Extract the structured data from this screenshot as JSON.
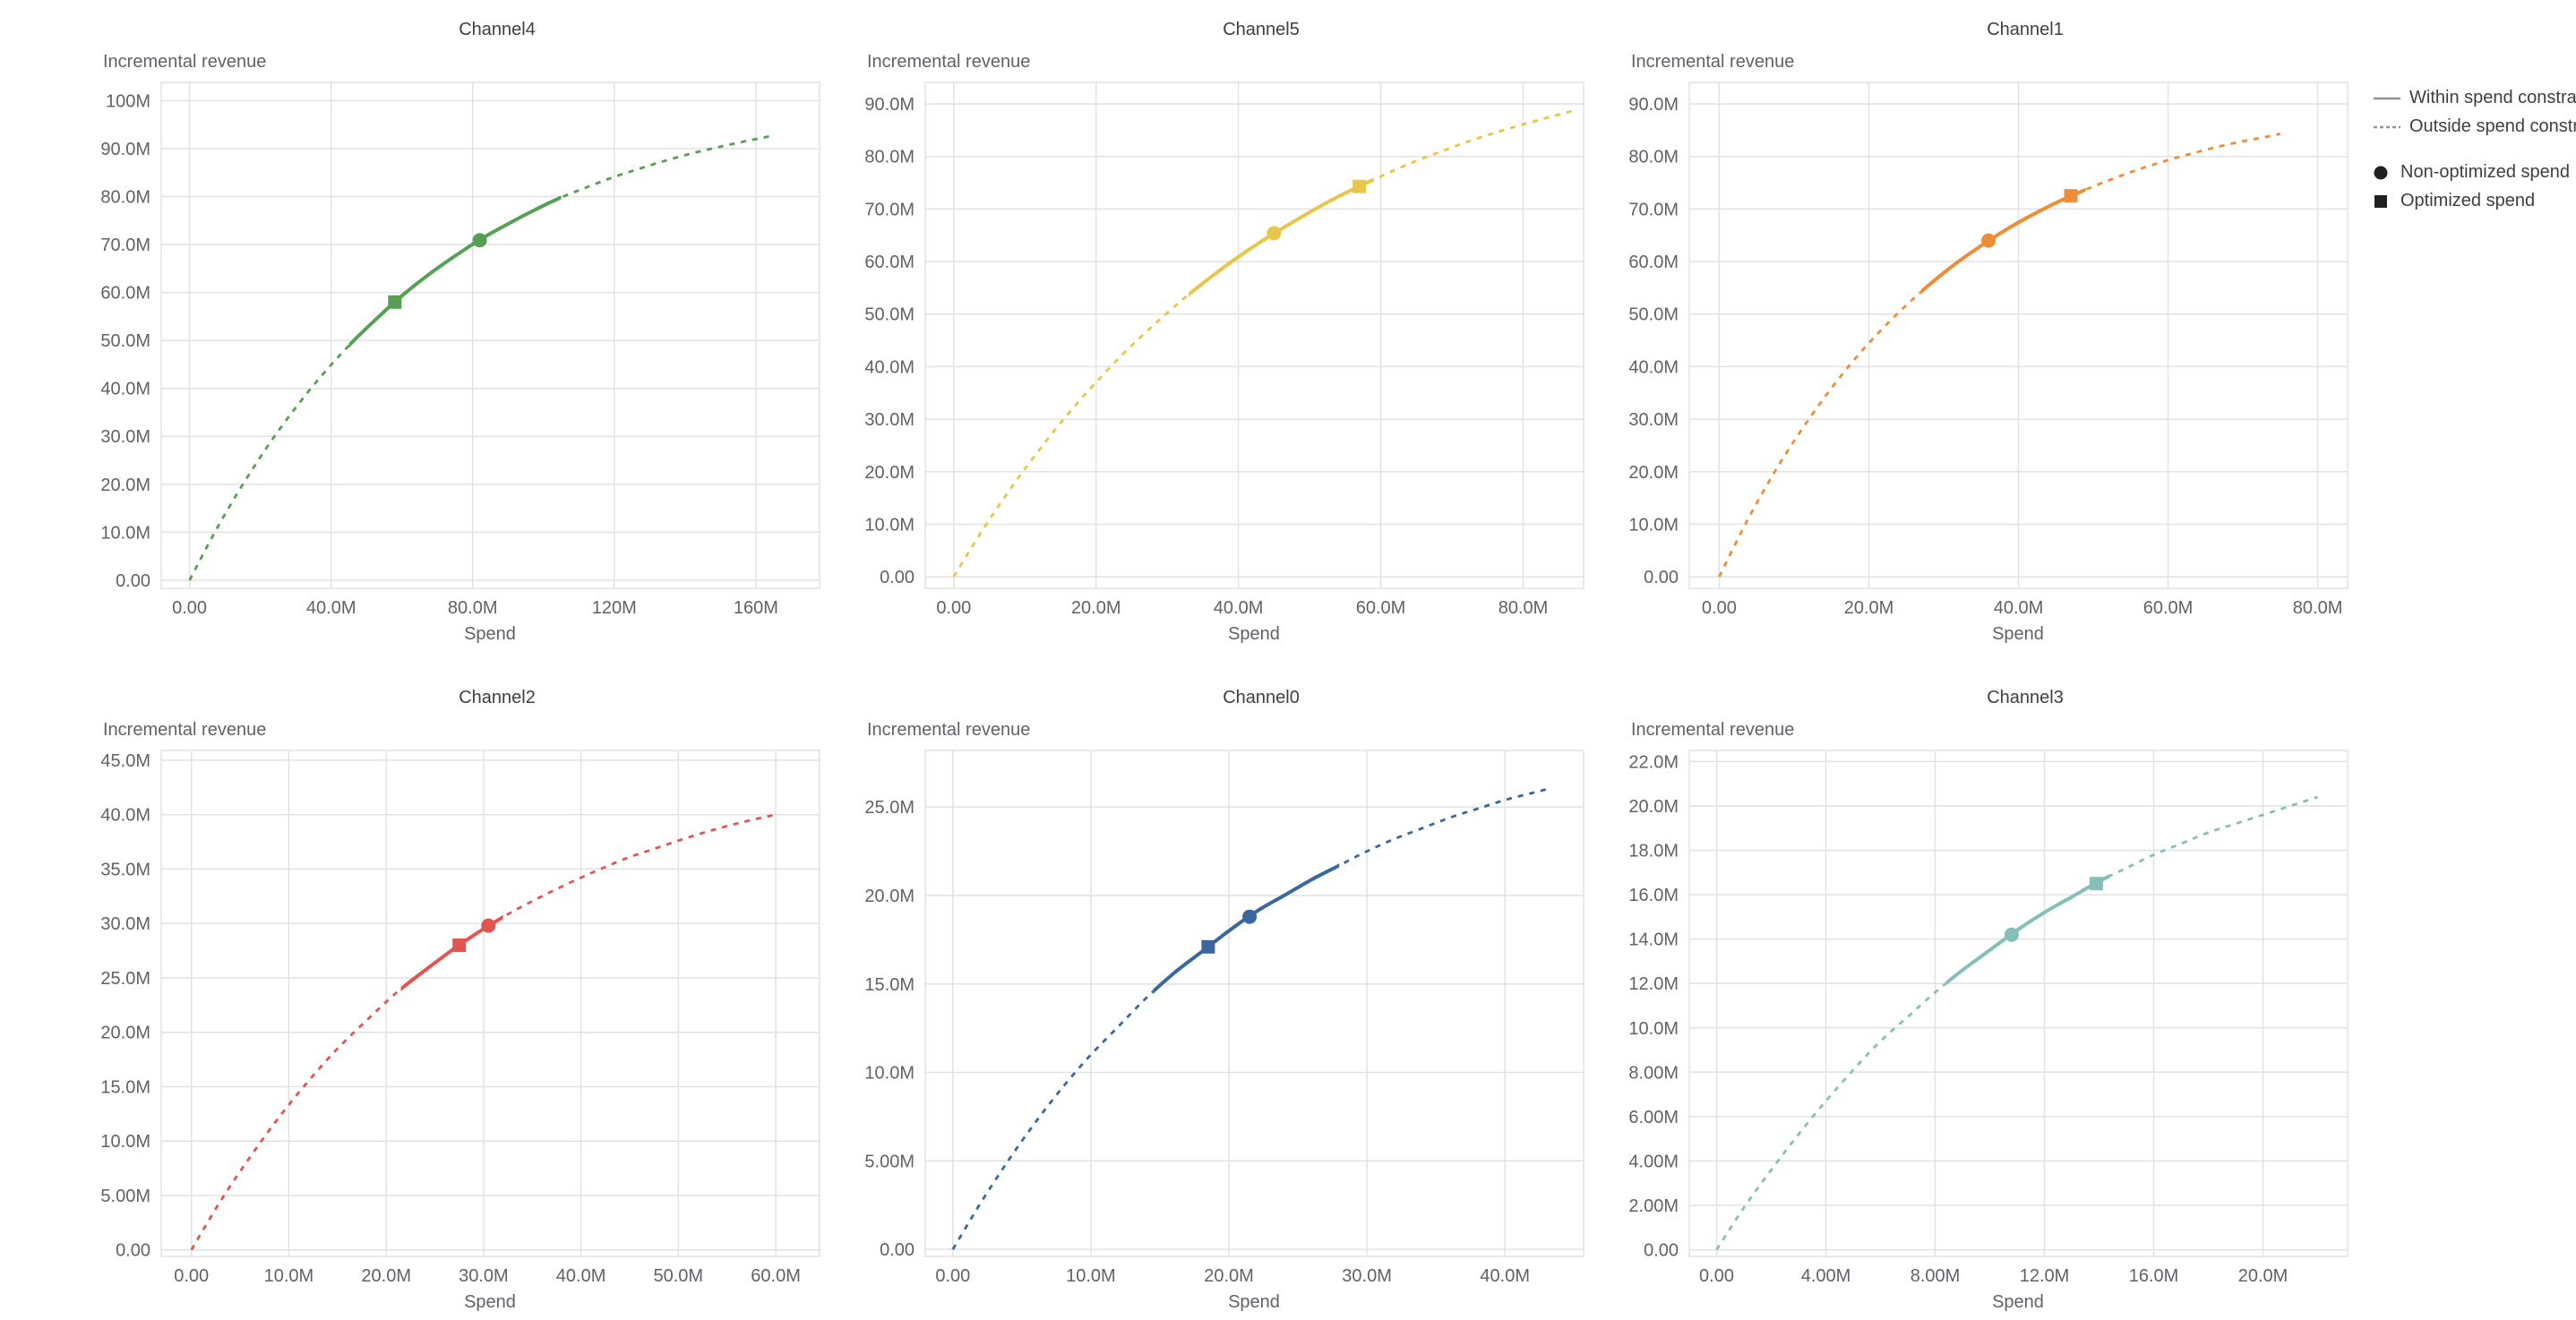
{
  "page": {
    "background": "#ffffff"
  },
  "legend": {
    "line_color": "#8f9399",
    "marker_color": "#202124",
    "items": [
      {
        "label": "Within spend constraint",
        "swatch": "solid-line"
      },
      {
        "label": "Outside spend constraint",
        "swatch": "dashed-line"
      },
      {
        "label": "Non-optimized spend",
        "swatch": "circle"
      },
      {
        "label": "Optimized spend",
        "swatch": "square"
      }
    ]
  },
  "chart_data": [
    {
      "type": "line",
      "title": "Channel4",
      "x_axis_title": "Spend",
      "y_axis_title": "Incremental revenue",
      "color": "#55a054",
      "units": "M",
      "x_domain": [
        -8,
        178
      ],
      "y_domain": [
        -1.7,
        103.8
      ],
      "x_ticks": [
        {
          "v": 0,
          "label": "0.00"
        },
        {
          "v": 40,
          "label": "40.0M"
        },
        {
          "v": 80,
          "label": "80.0M"
        },
        {
          "v": 120,
          "label": "120M"
        },
        {
          "v": 160,
          "label": "160M"
        }
      ],
      "y_ticks": [
        {
          "v": 0,
          "label": "0.00"
        },
        {
          "v": 10,
          "label": "10.0M"
        },
        {
          "v": 20,
          "label": "20.0M"
        },
        {
          "v": 30,
          "label": "30.0M"
        },
        {
          "v": 40,
          "label": "40.0M"
        },
        {
          "v": 50,
          "label": "50.0M"
        },
        {
          "v": 60,
          "label": "60.0M"
        },
        {
          "v": 70,
          "label": "70.0M"
        },
        {
          "v": 80,
          "label": "80.0M"
        },
        {
          "v": 90,
          "label": "90.0M"
        },
        {
          "v": 100,
          "label": "100M"
        }
      ],
      "curve": [
        [
          0,
          0
        ],
        [
          7.5,
          10.5
        ],
        [
          15,
          19.9
        ],
        [
          22.5,
          28.4
        ],
        [
          30,
          36.0
        ],
        [
          37.5,
          42.8
        ],
        [
          45,
          48.9
        ],
        [
          52.5,
          54.3
        ],
        [
          60,
          59.3
        ],
        [
          67.5,
          63.7
        ],
        [
          75,
          67.6
        ],
        [
          82.5,
          71.2
        ],
        [
          90,
          74.3
        ],
        [
          97.5,
          77.2
        ],
        [
          105,
          79.8
        ],
        [
          112.5,
          82.0
        ],
        [
          120,
          84.1
        ],
        [
          127.5,
          85.9
        ],
        [
          135,
          87.6
        ],
        [
          142.5,
          89.1
        ],
        [
          150,
          90.4
        ],
        [
          157.5,
          91.6
        ],
        [
          165,
          92.7
        ]
      ],
      "solid_range": [
        45,
        105
      ],
      "markers": {
        "non_optimized": [
          82,
          70.9
        ],
        "optimized": [
          58,
          58.0
        ]
      }
    },
    {
      "type": "line",
      "title": "Channel5",
      "x_axis_title": "Spend",
      "y_axis_title": "Incremental revenue",
      "color": "#e8c64a",
      "units": "M",
      "x_domain": [
        -4,
        88.5
      ],
      "y_domain": [
        -2.2,
        94.1
      ],
      "x_ticks": [
        {
          "v": 0,
          "label": "0.00"
        },
        {
          "v": 20,
          "label": "20.0M"
        },
        {
          "v": 40,
          "label": "40.0M"
        },
        {
          "v": 60,
          "label": "60.0M"
        },
        {
          "v": 80,
          "label": "80.0M"
        }
      ],
      "y_ticks": [
        {
          "v": 0,
          "label": "0.00"
        },
        {
          "v": 10,
          "label": "10.0M"
        },
        {
          "v": 20,
          "label": "20.0M"
        },
        {
          "v": 30,
          "label": "30.0M"
        },
        {
          "v": 40,
          "label": "40.0M"
        },
        {
          "v": 50,
          "label": "50.0M"
        },
        {
          "v": 60,
          "label": "60.0M"
        },
        {
          "v": 70,
          "label": "70.0M"
        },
        {
          "v": 80,
          "label": "80.0M"
        },
        {
          "v": 90,
          "label": "90.0M"
        }
      ],
      "curve": [
        [
          0,
          0
        ],
        [
          4,
          8.8
        ],
        [
          8,
          16.8
        ],
        [
          12,
          24.1
        ],
        [
          16,
          30.9
        ],
        [
          20,
          37.0
        ],
        [
          24,
          42.7
        ],
        [
          28,
          47.8
        ],
        [
          32,
          52.6
        ],
        [
          36,
          56.9
        ],
        [
          40,
          60.9
        ],
        [
          44,
          64.5
        ],
        [
          48,
          67.8
        ],
        [
          52,
          70.9
        ],
        [
          56,
          73.7
        ],
        [
          60,
          76.2
        ],
        [
          64,
          78.6
        ],
        [
          68,
          80.7
        ],
        [
          72,
          82.7
        ],
        [
          76,
          84.5
        ],
        [
          80,
          86.1
        ],
        [
          84,
          87.6
        ],
        [
          87,
          88.7
        ]
      ],
      "solid_range": [
        33,
        59
      ],
      "markers": {
        "non_optimized": [
          45,
          65.4
        ],
        "optimized": [
          57,
          74.3
        ]
      }
    },
    {
      "type": "line",
      "title": "Channel1",
      "x_axis_title": "Spend",
      "y_axis_title": "Incremental revenue",
      "color": "#ee8d36",
      "units": "M",
      "x_domain": [
        -4,
        84
      ],
      "y_domain": [
        -2.2,
        94.1
      ],
      "x_ticks": [
        {
          "v": 0,
          "label": "0.00"
        },
        {
          "v": 20,
          "label": "20.0M"
        },
        {
          "v": 40,
          "label": "40.0M"
        },
        {
          "v": 60,
          "label": "60.0M"
        },
        {
          "v": 80,
          "label": "80.0M"
        }
      ],
      "y_ticks": [
        {
          "v": 0,
          "label": "0.00"
        },
        {
          "v": 10,
          "label": "10.0M"
        },
        {
          "v": 20,
          "label": "20.0M"
        },
        {
          "v": 30,
          "label": "30.0M"
        },
        {
          "v": 40,
          "label": "40.0M"
        },
        {
          "v": 50,
          "label": "50.0M"
        },
        {
          "v": 60,
          "label": "60.0M"
        },
        {
          "v": 70,
          "label": "70.0M"
        },
        {
          "v": 80,
          "label": "80.0M"
        },
        {
          "v": 90,
          "label": "90.0M"
        }
      ],
      "curve": [
        [
          0,
          0
        ],
        [
          3.5,
          10.0
        ],
        [
          7,
          19.0
        ],
        [
          10.5,
          26.9
        ],
        [
          14,
          34.0
        ],
        [
          17.5,
          40.4
        ],
        [
          21,
          46.0
        ],
        [
          24.5,
          51.0
        ],
        [
          28,
          55.5
        ],
        [
          31.5,
          59.5
        ],
        [
          35,
          63.0
        ],
        [
          38.5,
          66.2
        ],
        [
          42,
          69.0
        ],
        [
          45.5,
          71.5
        ],
        [
          49,
          73.7
        ],
        [
          52.5,
          75.7
        ],
        [
          56,
          77.5
        ],
        [
          59.5,
          79.1
        ],
        [
          63,
          80.5
        ],
        [
          66.5,
          81.8
        ],
        [
          70,
          82.9
        ],
        [
          73,
          83.7
        ],
        [
          75,
          84.3
        ]
      ],
      "solid_range": [
        27,
        49
      ],
      "markers": {
        "non_optimized": [
          36,
          64.0
        ],
        "optimized": [
          47,
          72.5
        ]
      }
    },
    {
      "type": "line",
      "title": "Channel2",
      "x_axis_title": "Spend",
      "y_axis_title": "Incremental revenue",
      "color": "#e0554f",
      "units": "M",
      "x_domain": [
        -3.1,
        64.5
      ],
      "y_domain": [
        -0.6,
        45.9
      ],
      "x_ticks": [
        {
          "v": 0,
          "label": "0.00"
        },
        {
          "v": 10,
          "label": "10.0M"
        },
        {
          "v": 20,
          "label": "20.0M"
        },
        {
          "v": 30,
          "label": "30.0M"
        },
        {
          "v": 40,
          "label": "40.0M"
        },
        {
          "v": 50,
          "label": "50.0M"
        },
        {
          "v": 60,
          "label": "60.0M"
        }
      ],
      "y_ticks": [
        {
          "v": 0,
          "label": "0.00"
        },
        {
          "v": 5,
          "label": "5.00M"
        },
        {
          "v": 10,
          "label": "10.0M"
        },
        {
          "v": 15,
          "label": "15.0M"
        },
        {
          "v": 20,
          "label": "20.0M"
        },
        {
          "v": 25,
          "label": "25.0M"
        },
        {
          "v": 30,
          "label": "30.0M"
        },
        {
          "v": 35,
          "label": "35.0M"
        },
        {
          "v": 40,
          "label": "40.0M"
        },
        {
          "v": 45,
          "label": "45.0M"
        }
      ],
      "curve": [
        [
          0,
          0
        ],
        [
          3,
          4.5
        ],
        [
          6,
          8.5
        ],
        [
          9,
          12.2
        ],
        [
          12,
          15.5
        ],
        [
          15,
          18.5
        ],
        [
          18,
          21.1
        ],
        [
          21,
          23.6
        ],
        [
          24,
          25.7
        ],
        [
          27,
          27.7
        ],
        [
          30,
          29.5
        ],
        [
          33,
          31.1
        ],
        [
          36,
          32.5
        ],
        [
          39,
          33.8
        ],
        [
          42,
          35.0
        ],
        [
          45,
          36.1
        ],
        [
          48,
          37.0
        ],
        [
          51,
          37.9
        ],
        [
          54,
          38.7
        ],
        [
          57,
          39.4
        ],
        [
          60,
          40.0
        ]
      ],
      "solid_range": [
        21.5,
        32
      ],
      "markers": {
        "non_optimized": [
          30.5,
          29.8
        ],
        "optimized": [
          27.5,
          28.0
        ]
      }
    },
    {
      "type": "line",
      "title": "Channel0",
      "x_axis_title": "Spend",
      "y_axis_title": "Incremental revenue",
      "color": "#3a689e",
      "units": "M",
      "x_domain": [
        -2,
        45.7
      ],
      "y_domain": [
        -0.4,
        28.2
      ],
      "x_ticks": [
        {
          "v": 0,
          "label": "0.00"
        },
        {
          "v": 10,
          "label": "10.0M"
        },
        {
          "v": 20,
          "label": "20.0M"
        },
        {
          "v": 30,
          "label": "30.0M"
        },
        {
          "v": 40,
          "label": "40.0M"
        }
      ],
      "y_ticks": [
        {
          "v": 0,
          "label": "0.00"
        },
        {
          "v": 5,
          "label": "5.00M"
        },
        {
          "v": 10,
          "label": "10.0M"
        },
        {
          "v": 15,
          "label": "15.0M"
        },
        {
          "v": 20,
          "label": "20.0M"
        },
        {
          "v": 25,
          "label": "25.0M"
        }
      ],
      "curve": [
        [
          0,
          0
        ],
        [
          2,
          2.6
        ],
        [
          4,
          5.0
        ],
        [
          6,
          7.2
        ],
        [
          8,
          9.2
        ],
        [
          10,
          11.0
        ],
        [
          12,
          12.6
        ],
        [
          14,
          14.2
        ],
        [
          16,
          15.6
        ],
        [
          18,
          16.8
        ],
        [
          20,
          18.0
        ],
        [
          22,
          19.1
        ],
        [
          24,
          20.0
        ],
        [
          26,
          20.9
        ],
        [
          28,
          21.7
        ],
        [
          30,
          22.5
        ],
        [
          32,
          23.2
        ],
        [
          34,
          23.8
        ],
        [
          36,
          24.4
        ],
        [
          38,
          24.9
        ],
        [
          40,
          25.4
        ],
        [
          42,
          25.8
        ],
        [
          43,
          26.0
        ]
      ],
      "solid_range": [
        14.5,
        28
      ],
      "markers": {
        "non_optimized": [
          21.5,
          18.8
        ],
        "optimized": [
          18.5,
          17.1
        ]
      }
    },
    {
      "type": "line",
      "title": "Channel3",
      "x_axis_title": "Spend",
      "y_axis_title": "Incremental revenue",
      "color": "#84c0b9",
      "units": "M",
      "x_domain": [
        -1,
        23.1
      ],
      "y_domain": [
        -0.3,
        22.5
      ],
      "x_ticks": [
        {
          "v": 0,
          "label": "0.00"
        },
        {
          "v": 4,
          "label": "4.00M"
        },
        {
          "v": 8,
          "label": "8.00M"
        },
        {
          "v": 12,
          "label": "12.0M"
        },
        {
          "v": 16,
          "label": "16.0M"
        },
        {
          "v": 20,
          "label": "20.0M"
        }
      ],
      "y_ticks": [
        {
          "v": 0,
          "label": "0.00"
        },
        {
          "v": 2,
          "label": "2.00M"
        },
        {
          "v": 4,
          "label": "4.00M"
        },
        {
          "v": 6,
          "label": "6.00M"
        },
        {
          "v": 8,
          "label": "8.00M"
        },
        {
          "v": 10,
          "label": "10.0M"
        },
        {
          "v": 12,
          "label": "12.0M"
        },
        {
          "v": 14,
          "label": "14.0M"
        },
        {
          "v": 16,
          "label": "16.0M"
        },
        {
          "v": 18,
          "label": "18.0M"
        },
        {
          "v": 20,
          "label": "20.0M"
        },
        {
          "v": 22,
          "label": "22.0M"
        }
      ],
      "curve": [
        [
          0,
          0
        ],
        [
          1,
          1.9
        ],
        [
          2,
          3.6
        ],
        [
          3,
          5.2
        ],
        [
          4,
          6.7
        ],
        [
          5,
          8.1
        ],
        [
          6,
          9.4
        ],
        [
          7,
          10.5
        ],
        [
          8,
          11.6
        ],
        [
          9,
          12.6
        ],
        [
          10,
          13.5
        ],
        [
          11,
          14.4
        ],
        [
          12,
          15.2
        ],
        [
          13,
          15.9
        ],
        [
          14,
          16.6
        ],
        [
          15,
          17.2
        ],
        [
          16,
          17.8
        ],
        [
          17,
          18.3
        ],
        [
          18,
          18.8
        ],
        [
          19,
          19.2
        ],
        [
          20,
          19.6
        ],
        [
          21,
          20.0
        ],
        [
          22,
          20.4
        ]
      ],
      "solid_range": [
        8.4,
        14.4
      ],
      "markers": {
        "non_optimized": [
          10.8,
          14.2
        ],
        "optimized": [
          13.9,
          16.5
        ]
      }
    }
  ]
}
